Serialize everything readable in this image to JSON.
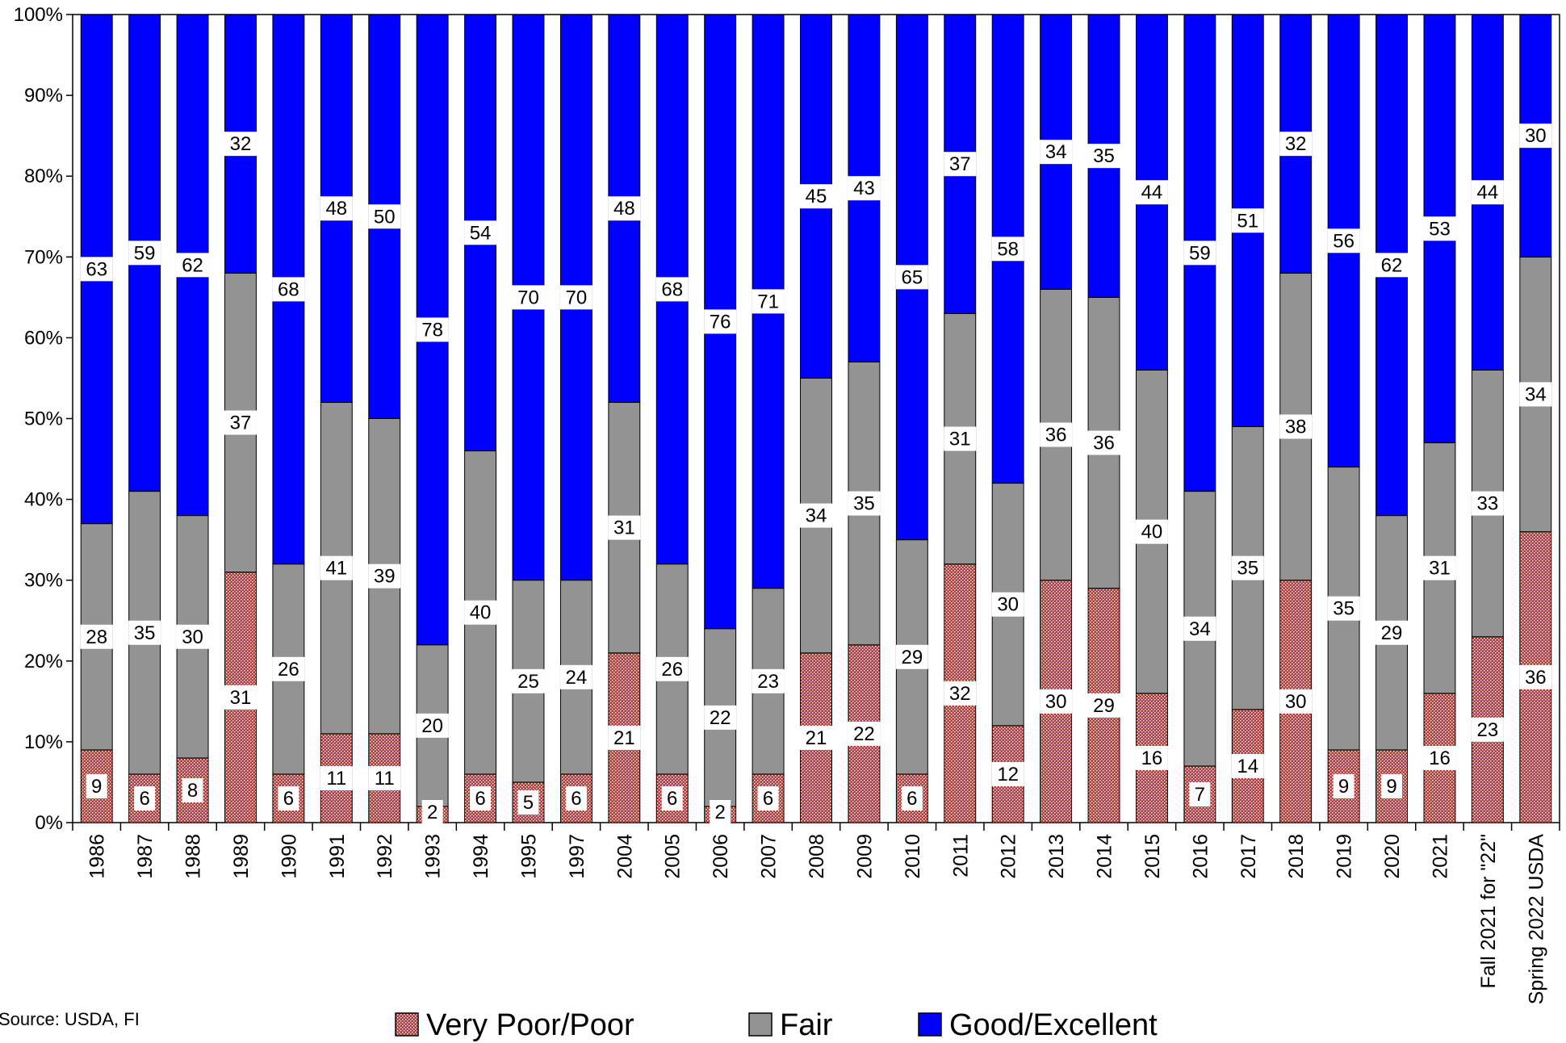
{
  "chart_data": {
    "type": "bar",
    "stacked": "percent",
    "categories": [
      "1986",
      "1987",
      "1988",
      "1989",
      "1990",
      "1991",
      "1992",
      "1993",
      "1994",
      "1995",
      "1997",
      "2004",
      "2005",
      "2006",
      "2007",
      "2008",
      "2009",
      "2010",
      "2011",
      "2012",
      "2013",
      "2014",
      "2015",
      "2016",
      "2017",
      "2018",
      "2019",
      "2020",
      "2021",
      "Fall 2021 for \"22\"",
      "Spring 2022 USDA"
    ],
    "series": [
      {
        "name": "Very Poor/Poor",
        "color": "#e8232a",
        "pattern": "dotted-red",
        "values": [
          9,
          6,
          8,
          31,
          6,
          11,
          11,
          2,
          6,
          5,
          6,
          21,
          6,
          2,
          6,
          21,
          22,
          6,
          32,
          12,
          30,
          29,
          16,
          7,
          14,
          30,
          9,
          9,
          16,
          23,
          36
        ]
      },
      {
        "name": "Fair",
        "color": "#939393",
        "values": [
          28,
          35,
          30,
          37,
          26,
          41,
          39,
          20,
          40,
          25,
          24,
          31,
          26,
          22,
          23,
          34,
          35,
          29,
          31,
          30,
          36,
          36,
          40,
          34,
          35,
          38,
          35,
          29,
          31,
          33,
          34
        ]
      },
      {
        "name": "Good/Excellent",
        "color": "#0000ff",
        "values": [
          63,
          59,
          62,
          32,
          68,
          48,
          50,
          78,
          54,
          70,
          70,
          48,
          68,
          76,
          71,
          45,
          43,
          65,
          37,
          58,
          34,
          35,
          44,
          59,
          51,
          32,
          56,
          62,
          53,
          44,
          30
        ]
      }
    ],
    "y_ticks": [
      "0%",
      "10%",
      "20%",
      "30%",
      "40%",
      "50%",
      "60%",
      "70%",
      "80%",
      "90%",
      "100%"
    ],
    "ylim": [
      0,
      100
    ],
    "legend_position": "bottom",
    "note": "Source: USDA, FI"
  }
}
